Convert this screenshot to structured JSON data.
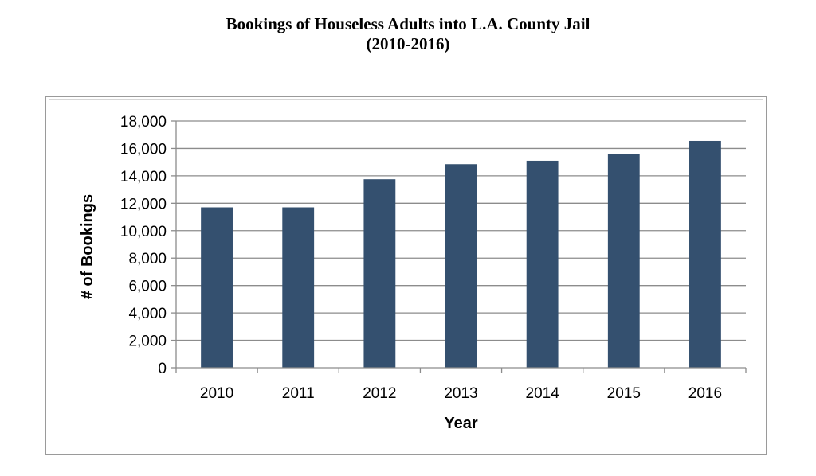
{
  "title": {
    "line1": "Bookings of Houseless Adults into L.A. County Jail",
    "line2": "(2010-2016)"
  },
  "chart_data": {
    "type": "bar",
    "title": "Bookings of Houseless Adults into L.A. County Jail (2010-2016)",
    "xlabel": "Year",
    "ylabel": "# of Bookings",
    "categories": [
      "2010",
      "2011",
      "2012",
      "2013",
      "2014",
      "2015",
      "2016"
    ],
    "values": [
      11700,
      11700,
      13750,
      14850,
      15100,
      15600,
      16550
    ],
    "ylim": [
      0,
      18000
    ],
    "yticks": [
      0,
      2000,
      4000,
      6000,
      8000,
      10000,
      12000,
      14000,
      16000,
      18000
    ],
    "ytick_labels": [
      "0",
      "2,000",
      "4,000",
      "6,000",
      "8,000",
      "10,000",
      "12,000",
      "14,000",
      "16,000",
      "18,000"
    ],
    "grid": true,
    "legend": "none",
    "bar_color": "#34506f",
    "grid_color": "#8c8c8c"
  }
}
